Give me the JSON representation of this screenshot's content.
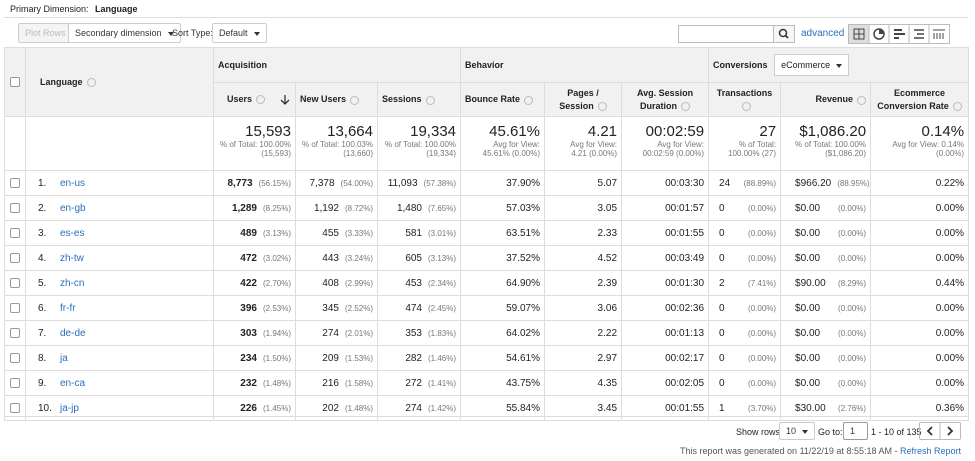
{
  "primary_dimension": {
    "label": "Primary Dimension:",
    "value": "Language"
  },
  "toolbar": {
    "plot_rows": "Plot Rows",
    "secondary_dimension": "Secondary dimension",
    "sort_type_label": "Sort Type:",
    "sort_type": "Default",
    "advanced": "advanced"
  },
  "table": {
    "groups": {
      "acquisition": "Acquisition",
      "behavior": "Behavior",
      "conversions": "Conversions",
      "goal_select": "eCommerce"
    },
    "columns": [
      "Language",
      "Users",
      "New Users",
      "Sessions",
      "Bounce Rate",
      "Pages / Session",
      "Avg. Session Duration",
      "Transactions",
      "Revenue",
      "Ecommerce Conversion Rate"
    ],
    "totals": [
      {
        "value": "15,593",
        "lines": [
          "% of Total: 100.00%",
          "(15,593)"
        ]
      },
      {
        "value": "13,664",
        "lines": [
          "% of Total: 100.03%",
          "(13,660)"
        ]
      },
      {
        "value": "19,334",
        "lines": [
          "% of Total: 100.00%",
          "(19,334)"
        ]
      },
      {
        "value": "45.61%",
        "lines": [
          "Avg for View:",
          "45.61% (0.00%)"
        ]
      },
      {
        "value": "4.21",
        "lines": [
          "Avg for View:",
          "4.21 (0.00%)"
        ]
      },
      {
        "value": "00:02:59",
        "lines": [
          "Avg for View:",
          "00:02:59 (0.00%)"
        ]
      },
      {
        "value": "27",
        "lines": [
          "% of Total:",
          "100.00% (27)"
        ]
      },
      {
        "value": "$1,086.20",
        "lines": [
          "% of Total: 100.00%",
          "($1,086.20)"
        ]
      },
      {
        "value": "0.14%",
        "lines": [
          "Avg for View: 0.14%",
          "(0.00%)"
        ]
      }
    ],
    "rows": [
      {
        "index": "1.",
        "cells": [
          "en-us",
          "8,773",
          "(56.15%)",
          "7,378",
          "(54.00%)",
          "11,093",
          "(57.38%)",
          "37.90%",
          "5.07",
          "00:03:30",
          "24",
          "(88.89%)",
          "$966.20",
          "(88.95%)",
          "0.22%"
        ]
      },
      {
        "index": "2.",
        "cells": [
          "en-gb",
          "1,289",
          "(8.25%)",
          "1,192",
          "(8.72%)",
          "1,480",
          "(7.65%)",
          "57.03%",
          "3.05",
          "00:01:57",
          "0",
          "(0.00%)",
          "$0.00",
          "(0.00%)",
          "0.00%"
        ]
      },
      {
        "index": "3.",
        "cells": [
          "es-es",
          "489",
          "(3.13%)",
          "455",
          "(3.33%)",
          "581",
          "(3.01%)",
          "63.51%",
          "2.33",
          "00:01:55",
          "0",
          "(0.00%)",
          "$0.00",
          "(0.00%)",
          "0.00%"
        ]
      },
      {
        "index": "4.",
        "cells": [
          "zh-tw",
          "472",
          "(3.02%)",
          "443",
          "(3.24%)",
          "605",
          "(3.13%)",
          "37.52%",
          "4.52",
          "00:03:49",
          "0",
          "(0.00%)",
          "$0.00",
          "(0.00%)",
          "0.00%"
        ]
      },
      {
        "index": "5.",
        "cells": [
          "zh-cn",
          "422",
          "(2.70%)",
          "408",
          "(2.99%)",
          "453",
          "(2.34%)",
          "64.90%",
          "2.39",
          "00:01:30",
          "2",
          "(7.41%)",
          "$90.00",
          "(8.29%)",
          "0.44%"
        ]
      },
      {
        "index": "6.",
        "cells": [
          "fr-fr",
          "396",
          "(2.53%)",
          "345",
          "(2.52%)",
          "474",
          "(2.45%)",
          "59.07%",
          "3.06",
          "00:02:36",
          "0",
          "(0.00%)",
          "$0.00",
          "(0.00%)",
          "0.00%"
        ]
      },
      {
        "index": "7.",
        "cells": [
          "de-de",
          "303",
          "(1.94%)",
          "274",
          "(2.01%)",
          "353",
          "(1.83%)",
          "64.02%",
          "2.22",
          "00:01:13",
          "0",
          "(0.00%)",
          "$0.00",
          "(0.00%)",
          "0.00%"
        ]
      },
      {
        "index": "8.",
        "cells": [
          "ja",
          "234",
          "(1.50%)",
          "209",
          "(1.53%)",
          "282",
          "(1.46%)",
          "54.61%",
          "2.97",
          "00:02:17",
          "0",
          "(0.00%)",
          "$0.00",
          "(0.00%)",
          "0.00%"
        ]
      },
      {
        "index": "9.",
        "cells": [
          "en-ca",
          "232",
          "(1.48%)",
          "216",
          "(1.58%)",
          "272",
          "(1.41%)",
          "43.75%",
          "4.35",
          "00:02:05",
          "0",
          "(0.00%)",
          "$0.00",
          "(0.00%)",
          "0.00%"
        ]
      },
      {
        "index": "10.",
        "cells": [
          "ja-jp",
          "226",
          "(1.45%)",
          "202",
          "(1.48%)",
          "274",
          "(1.42%)",
          "55.84%",
          "3.45",
          "00:01:55",
          "1",
          "(3.70%)",
          "$30.00",
          "(2.76%)",
          "0.36%"
        ]
      }
    ]
  },
  "footer": {
    "show_rows_label": "Show rows:",
    "show_rows": "10",
    "go_to_label": "Go to:",
    "go_to": "1",
    "range": "1 - 10 of 135",
    "generated": "This report was generated on 11/22/19 at 8:55:18 AM - ",
    "refresh": "Refresh Report"
  }
}
